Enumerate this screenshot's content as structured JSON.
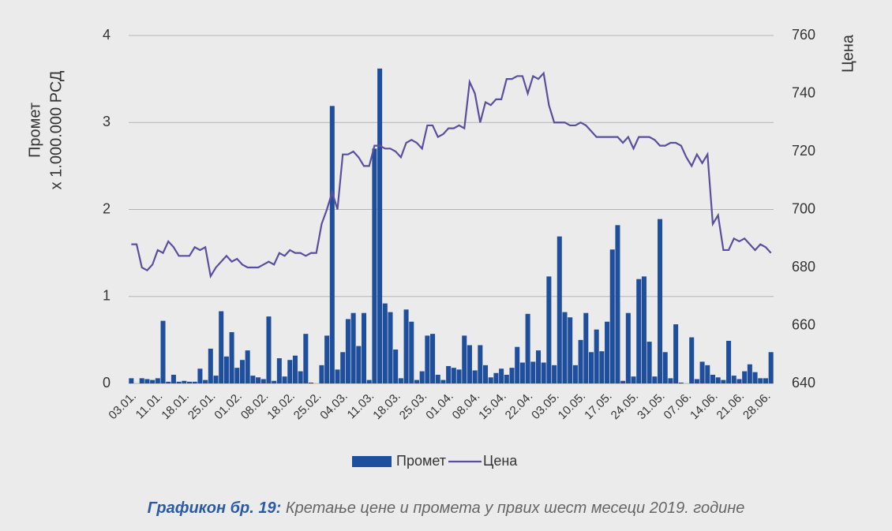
{
  "chart_data": {
    "type": "bar_line",
    "ylabel": [
      "Промет",
      "x 1.000.000 РСД"
    ],
    "y2label": "Цена",
    "caption_label": "Графикон бр. 19:",
    "caption_text": "Кретање цене и промета у првих шест месеци 2019. године",
    "categories": [
      "03.01.",
      null,
      null,
      null,
      null,
      "11.01.",
      null,
      null,
      null,
      null,
      "18.01.",
      null,
      null,
      null,
      null,
      "25.01.",
      null,
      null,
      null,
      null,
      "01.02.",
      null,
      null,
      null,
      null,
      "08.02.",
      null,
      null,
      null,
      null,
      "18.02.",
      null,
      null,
      null,
      null,
      "25.02.",
      null,
      null,
      null,
      null,
      "04.03.",
      null,
      null,
      null,
      null,
      "11.03.",
      null,
      null,
      null,
      null,
      "18.03.",
      null,
      null,
      null,
      null,
      "25.03.",
      null,
      null,
      null,
      null,
      "01.04.",
      null,
      null,
      null,
      null,
      "08.04.",
      null,
      null,
      null,
      null,
      "15.04.",
      null,
      null,
      null,
      null,
      "22.04.",
      null,
      null,
      null,
      null,
      "03.05.",
      null,
      null,
      null,
      null,
      "10.05.",
      null,
      null,
      null,
      null,
      "17.05.",
      null,
      null,
      null,
      null,
      "24.05.",
      null,
      null,
      null,
      null,
      "31.05.",
      null,
      null,
      null,
      null,
      "07.06.",
      null,
      null,
      null,
      null,
      "14.06.",
      null,
      null,
      null,
      null,
      "21.06.",
      null,
      null,
      null,
      null,
      "28.06.",
      null
    ],
    "series": [
      {
        "name": "Промет",
        "type": "bar",
        "color": "#1f4e9c",
        "values": [
          0.06,
          0,
          0.06,
          0.05,
          0.04,
          0.06,
          0.72,
          0.02,
          0.1,
          0.02,
          0.03,
          0.02,
          0.02,
          0.17,
          0.04,
          0.4,
          0.09,
          0.83,
          0.31,
          0.59,
          0.18,
          0.27,
          0.38,
          0.09,
          0.07,
          0.05,
          0.77,
          0.03,
          0.29,
          0.08,
          0.27,
          0.32,
          0.14,
          0.57,
          0.01,
          0,
          0.21,
          0.55,
          3.19,
          0.16,
          0.36,
          0.74,
          0.81,
          0.43,
          0.81,
          0.04,
          2.7,
          3.62,
          0.92,
          0.82,
          0.39,
          0.06,
          0.85,
          0.71,
          0.04,
          0.14,
          0.55,
          0.57,
          0.1,
          0.04,
          0.2,
          0.18,
          0.16,
          0.55,
          0.44,
          0.15,
          0.44,
          0.21,
          0.07,
          0.12,
          0.17,
          0.1,
          0.18,
          0.42,
          0.24,
          0.8,
          0.25,
          0.38,
          0.24,
          1.23,
          0.21,
          1.69,
          0.82,
          0.76,
          0.21,
          0.5,
          0.81,
          0.36,
          0.62,
          0.37,
          0.71,
          1.54,
          1.82,
          0.03,
          0.81,
          0.08,
          1.2,
          1.23,
          0.48,
          0.08,
          1.89,
          0.36,
          0.06,
          0.68,
          0.01,
          0,
          0.53,
          0.05,
          0.25,
          0.21,
          0.1,
          0.07,
          0.04,
          0.49,
          0.09,
          0.05,
          0.14,
          0.22,
          0.13,
          0.06,
          0.06,
          0.36
        ]
      },
      {
        "name": "Цена",
        "type": "line",
        "axis": "y2",
        "color": "#5a4f9e",
        "values": [
          688,
          688,
          680,
          679,
          681,
          686,
          685,
          689,
          687,
          684,
          684,
          684,
          687,
          686,
          687,
          677,
          680,
          682,
          684,
          682,
          683,
          681,
          680,
          680,
          680,
          681,
          682,
          681,
          685,
          684,
          686,
          685,
          685,
          684,
          685,
          685,
          695,
          700,
          706,
          700,
          719,
          719,
          720,
          718,
          715,
          715,
          722,
          722,
          721,
          721,
          720,
          718,
          723,
          724,
          723,
          721,
          729,
          729,
          725,
          726,
          728,
          728,
          729,
          728,
          744,
          740,
          730,
          737,
          736,
          738,
          738,
          745,
          745,
          746,
          746,
          740,
          746,
          745,
          747,
          736,
          730,
          730,
          730,
          729,
          729,
          730,
          729,
          727,
          725,
          725,
          725,
          725,
          725,
          723,
          725,
          721,
          725,
          725,
          725,
          724,
          722,
          722,
          723,
          723,
          722,
          718,
          715,
          719,
          716,
          719,
          695,
          698,
          686,
          686,
          690,
          689,
          690,
          688,
          686,
          688,
          687,
          685
        ]
      }
    ],
    "ylim": [
      0,
      4
    ],
    "yticks": [
      0,
      1,
      2,
      3,
      4
    ],
    "y2lim": [
      640,
      760
    ],
    "y2ticks": [
      640,
      660,
      680,
      700,
      720,
      740,
      760
    ],
    "grid": true,
    "legend": "bottom"
  }
}
